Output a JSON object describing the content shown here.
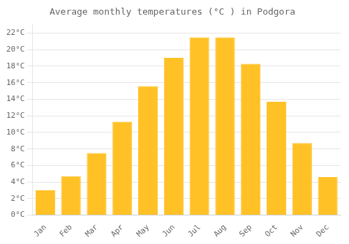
{
  "chart_data": {
    "type": "bar",
    "title": "Average monthly temperatures (°C ) in Podgora",
    "categories": [
      "Jan",
      "Feb",
      "Mar",
      "Apr",
      "May",
      "Jun",
      "Jul",
      "Aug",
      "Sep",
      "Oct",
      "Nov",
      "Dec"
    ],
    "values": [
      3.0,
      4.7,
      7.5,
      11.3,
      15.6,
      19.0,
      21.5,
      21.5,
      18.3,
      13.7,
      8.7,
      4.6
    ],
    "color": "#FFC125",
    "ylim": [
      0,
      23
    ],
    "yticks": [
      {
        "value": 0,
        "label": "0°C"
      },
      {
        "value": 2,
        "label": "2°C"
      },
      {
        "value": 4,
        "label": "4°C"
      },
      {
        "value": 6,
        "label": "6°C"
      },
      {
        "value": 8,
        "label": "8°C"
      },
      {
        "value": 10,
        "label": "10°C"
      },
      {
        "value": 12,
        "label": "12°C"
      },
      {
        "value": 14,
        "label": "14°C"
      },
      {
        "value": 16,
        "label": "16°C"
      },
      {
        "value": 18,
        "label": "18°C"
      },
      {
        "value": 20,
        "label": "20°C"
      },
      {
        "value": 22,
        "label": "22°C"
      }
    ],
    "grid": true
  }
}
